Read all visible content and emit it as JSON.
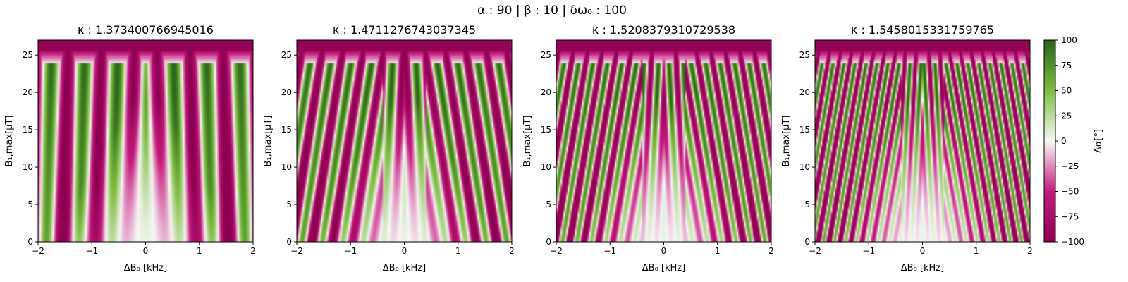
{
  "figure": {
    "suptitle": "α : 90  |  β : 10  | δω₀ : 100"
  },
  "colors": {
    "neg": "#8e0152",
    "mid": "#f7f7f7",
    "pos": "#276419",
    "axis": "#000000",
    "background": "#ffffff"
  },
  "chart_data": {
    "type": "heatmap",
    "colormap": "PiYG",
    "shared": {
      "xlabel": "ΔB₀ [kHz]",
      "ylabel": "B₁,max[μT]",
      "xlim": [
        -2,
        2
      ],
      "ylim": [
        0,
        27
      ],
      "xticks": [
        -2,
        -1,
        0,
        1,
        2
      ],
      "yticks": [
        0,
        5,
        10,
        15,
        20,
        25
      ],
      "grid": false
    },
    "panels": [
      {
        "title": "κ : 1.373400766945016",
        "kappa": 1.373400766945016
      },
      {
        "title": "κ : 1.4711276743037345",
        "kappa": 1.4711276743037345
      },
      {
        "title": "κ : 1.5208379310729538",
        "kappa": 1.5208379310729538
      },
      {
        "title": "κ : 1.5458015331759765",
        "kappa": 1.5458015331759765
      }
    ],
    "colorbar": {
      "label": "Δα[°]",
      "range": [
        -100,
        100
      ],
      "ticks": [
        100,
        75,
        50,
        25,
        0,
        -25,
        -50,
        -75,
        -100
      ]
    }
  }
}
